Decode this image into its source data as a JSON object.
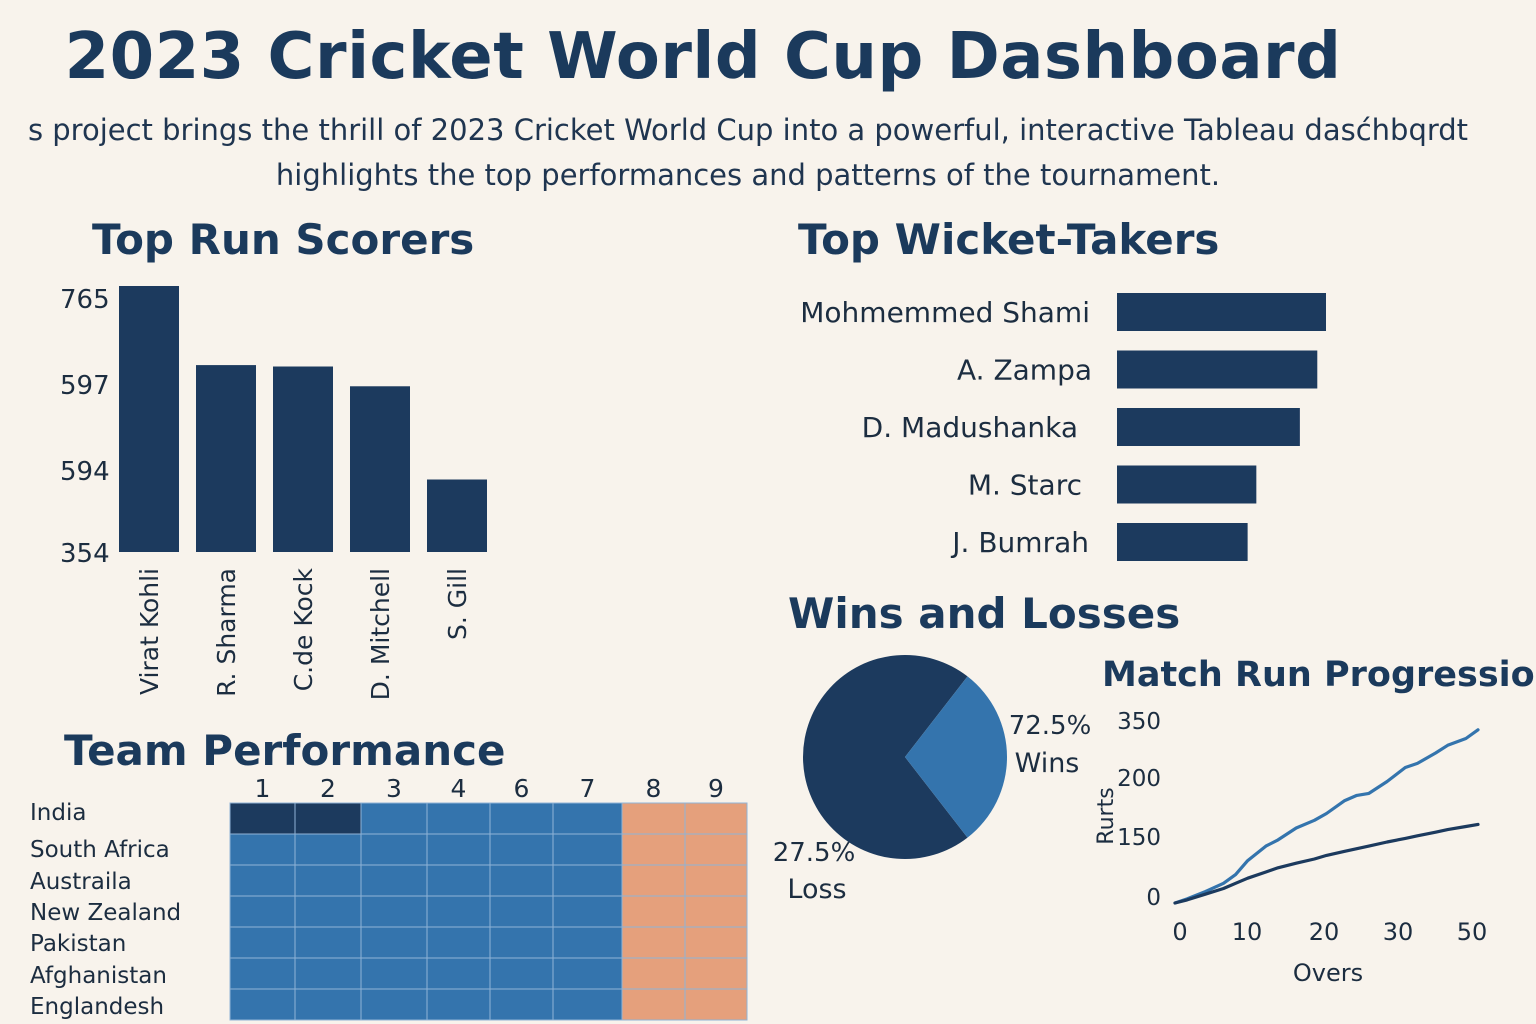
{
  "header": {
    "title": "2023 Cricket World Cup Dashboard",
    "subtitle_line1": "s project brings the thrill of 2023 Cricket World Cup into a powerful, interactive Tableau dasćhbqrdt",
    "subtitle_line2": "highlights the top performances and patterns of the tournament."
  },
  "colors": {
    "navy": "#1c3a5e",
    "blue": "#3474ad",
    "orange": "#e5a07c",
    "background": "#f8f3ec"
  },
  "chart_data": [
    {
      "id": "top-run-scorers",
      "type": "bar",
      "title": "Top Run Scorers",
      "categories": [
        "Virat Kohli",
        "R. Sharma",
        "C.de Kock",
        "D. Mitchell",
        "S. Gill"
      ],
      "values": [
        765,
        597,
        594,
        552,
        354
      ],
      "y_tick_labels": [
        "765",
        "597",
        "594",
        "354"
      ],
      "grid": false
    },
    {
      "id": "top-wicket-takers",
      "type": "bar",
      "orientation": "horizontal",
      "title": "Top Wicket-Takers",
      "categories": [
        "Mohmemmed Shami",
        "A. Zampa",
        "D. Madushanka",
        "M. Starc",
        "J. Bumrah"
      ],
      "values": [
        24,
        23,
        21,
        16,
        15
      ],
      "grid": false
    },
    {
      "id": "wins-and-losses",
      "type": "pie",
      "title": "Wins and Losses",
      "slices": [
        {
          "label": "Wins",
          "value": 72.5,
          "display": "72.5%"
        },
        {
          "label": "Loss",
          "value": 27.5,
          "display": "27.5%"
        }
      ]
    },
    {
      "id": "match-run-progression",
      "type": "line",
      "title": "Match Run Progression",
      "xlabel": "Overs",
      "ylabel": "Rurts",
      "x_ticks": [
        "0",
        "10",
        "20",
        "30",
        "50"
      ],
      "y_ticks": [
        "0",
        "150",
        "200",
        "350"
      ],
      "x": [
        0,
        2,
        5,
        8,
        10,
        12,
        15,
        17,
        20,
        23,
        25,
        28,
        30,
        32,
        35,
        38,
        40,
        43,
        45,
        48,
        50
      ],
      "series": [
        {
          "values": [
            0,
            8,
            22,
            38,
            55,
            82,
            110,
            122,
            145,
            160,
            173,
            198,
            208,
            212,
            235,
            262,
            270,
            290,
            305,
            318,
            335
          ]
        },
        {
          "values": [
            0,
            6,
            17,
            28,
            38,
            48,
            60,
            68,
            77,
            85,
            92,
            100,
            105,
            110,
            118,
            125,
            130,
            137,
            142,
            148,
            152
          ]
        }
      ],
      "grid": false
    },
    {
      "id": "team-performance",
      "type": "heatmap",
      "title": "Team Performance",
      "columns": [
        "1",
        "2",
        "3",
        "4",
        "6",
        "7",
        "8",
        "9"
      ],
      "rows": [
        "India",
        "South Africa",
        "Austraila",
        "New Zealand",
        "Pakistan",
        "Afghanistan",
        "Englandesh"
      ],
      "cells": [
        [
          "navy",
          "navy",
          "blue",
          "blue",
          "blue",
          "blue",
          "orange",
          "orange"
        ],
        [
          "blue",
          "blue",
          "blue",
          "blue",
          "blue",
          "blue",
          "orange",
          "orange"
        ],
        [
          "blue",
          "blue",
          "blue",
          "blue",
          "blue",
          "blue",
          "orange",
          "orange"
        ],
        [
          "blue",
          "blue",
          "blue",
          "blue",
          "blue",
          "blue",
          "orange",
          "orange"
        ],
        [
          "blue",
          "blue",
          "blue",
          "blue",
          "blue",
          "blue",
          "orange",
          "orange"
        ],
        [
          "blue",
          "blue",
          "blue",
          "blue",
          "blue",
          "blue",
          "orange",
          "orange"
        ],
        [
          "blue",
          "blue",
          "blue",
          "blue",
          "blue",
          "blue",
          "orange",
          "orange"
        ]
      ]
    }
  ]
}
